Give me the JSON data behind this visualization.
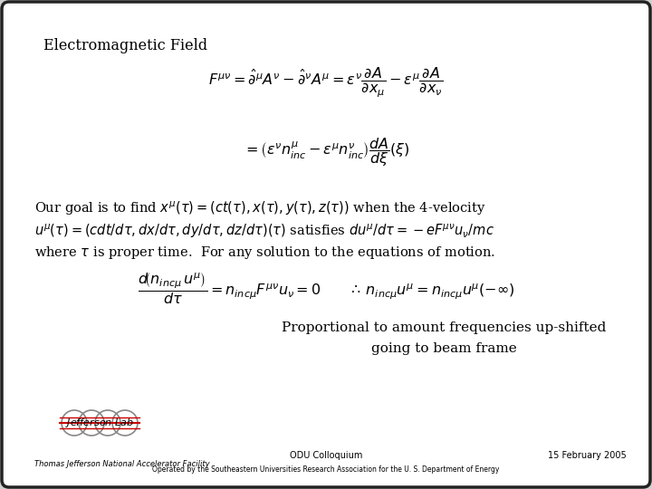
{
  "bg_color": "#ffffff",
  "border_color": "#000000",
  "title": "Electromagnetic Field",
  "prop_line1": "Proportional to amount frequencies up-shifted",
  "prop_line2": "going to beam frame",
  "footer_center": "ODU Colloquium",
  "footer_right": "15 February 2005",
  "footer_left": "Thomas Jefferson National Accelerator Facility",
  "footer_center2": "Operated by the Southeastern Universities Research Association for the U. S. Department of Energy",
  "slide_bg": "#f0f0f0"
}
